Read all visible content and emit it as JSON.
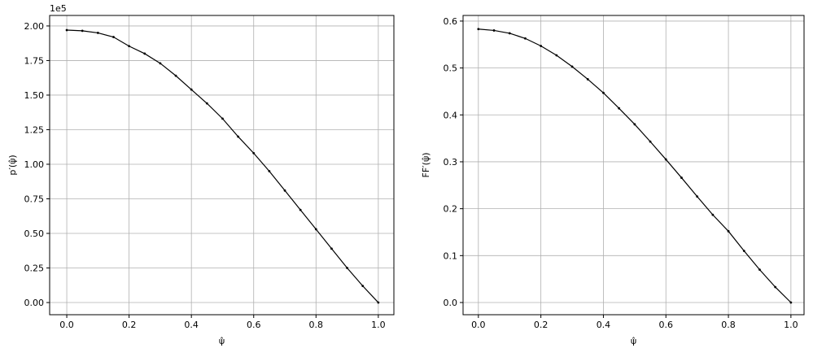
{
  "chart_data": [
    {
      "type": "line",
      "xlabel": "ψ̂",
      "ylabel": "p′(ψ̂)",
      "offset_label": "1e5",
      "color": "#000000",
      "grid": true,
      "x": [
        0,
        0.05,
        0.1,
        0.15,
        0.2,
        0.25,
        0.3,
        0.35,
        0.4,
        0.45,
        0.5,
        0.55,
        0.6,
        0.65,
        0.7,
        0.75,
        0.8,
        0.85,
        0.9,
        0.95,
        1
      ],
      "values": [
        1.97,
        1.965,
        1.95,
        1.92,
        1.854,
        1.8,
        1.73,
        1.64,
        1.54,
        1.44,
        1.33,
        1.2,
        1.08,
        0.95,
        0.81,
        0.67,
        0.53,
        0.39,
        0.25,
        0.12,
        0
      ],
      "xlim": [
        -0.055,
        1.05
      ],
      "ylim": [
        -0.088,
        2.076
      ],
      "xticks": [
        {
          "value": 0,
          "label": "0.0"
        },
        0.2,
        0.4,
        0.6,
        0.8,
        {
          "value": 1,
          "label": "1.0"
        }
      ],
      "yticks": [
        {
          "value": 0,
          "label": "0.00"
        },
        0.25,
        {
          "value": 0.5,
          "label": "0.50"
        },
        0.75,
        {
          "value": 1,
          "label": "1.00"
        },
        1.25,
        {
          "value": 1.5,
          "label": "1.50"
        },
        1.75,
        {
          "value": 2,
          "label": "2.00"
        }
      ]
    },
    {
      "type": "line",
      "xlabel": "ψ̂",
      "ylabel": "FF′(ψ̂)",
      "color": "#000000",
      "grid": true,
      "x": [
        0,
        0.05,
        0.1,
        0.15,
        0.2,
        0.25,
        0.3,
        0.35,
        0.4,
        0.45,
        0.5,
        0.55,
        0.6,
        0.65,
        0.7,
        0.75,
        0.8,
        0.85,
        0.9,
        0.95,
        1
      ],
      "values": [
        0.583,
        0.58,
        0.574,
        0.563,
        0.547,
        0.527,
        0.503,
        0.476,
        0.447,
        0.414,
        0.38,
        0.343,
        0.305,
        0.266,
        0.226,
        0.187,
        0.152,
        0.11,
        0.07,
        0.033,
        0
      ],
      "xlim": [
        -0.049,
        1.042
      ],
      "ylim": [
        -0.026,
        0.612
      ],
      "xticks": [
        {
          "value": 0,
          "label": "0.0"
        },
        0.2,
        0.4,
        0.6,
        0.8,
        {
          "value": 1,
          "label": "1.0"
        }
      ],
      "yticks": [
        {
          "value": 0,
          "label": "0.0"
        },
        0.1,
        0.2,
        0.3,
        0.4,
        0.5,
        0.6
      ]
    }
  ]
}
